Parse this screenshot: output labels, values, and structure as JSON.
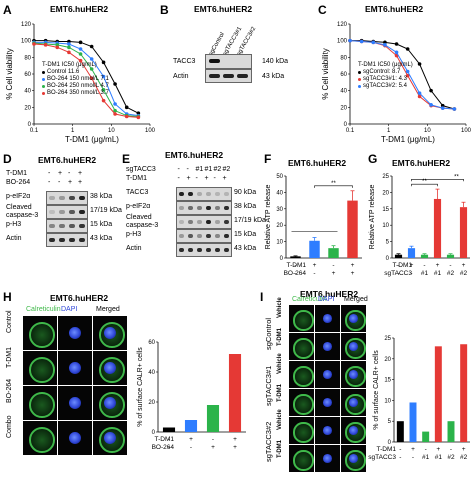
{
  "panels": {
    "A": {
      "letter": "A",
      "title": "EMT6.huHER2",
      "ylabel": "% Cell viability",
      "xlabel": "T-DM1 (μg/mL)",
      "legend_title": "T-DM1 IC50 (μg/mL)",
      "legend": [
        "Control 11.6",
        "BO-264 150 nmol/L 7.1",
        "BO-264 250 nmol/L 4.7",
        "BO-264 350 nmol/L 3.7"
      ],
      "yticks": [
        "0",
        "20",
        "40",
        "60",
        "80",
        "100",
        "120"
      ],
      "xticks": [
        "0.1",
        "1",
        "10",
        "100"
      ]
    },
    "B": {
      "letter": "B",
      "title": "EMT6.huHER2",
      "lanes": [
        "sgControl",
        "sgTACC3#1",
        "sgTACC3#2"
      ],
      "rows": [
        {
          "name": "TACC3",
          "kda": "140 kDa"
        },
        {
          "name": "Actin",
          "kda": "43 kDa"
        }
      ]
    },
    "C": {
      "letter": "C",
      "title": "EMT6.huHER2",
      "ylabel": "% Cell viability",
      "xlabel": "T-DM1 (μg/mL)",
      "legend_title": "T-DM1 IC50 (μg/mL)",
      "legend": [
        "sgControl: 8.7",
        "sgTACC3#1: 4.3",
        "sgTACC3#2: 5.4"
      ],
      "yticks": [
        "0",
        "20",
        "40",
        "60",
        "80",
        "100",
        "120"
      ],
      "xticks": [
        "0.1",
        "1",
        "10",
        "100"
      ]
    },
    "D": {
      "letter": "D",
      "title": "EMT6.huHER2",
      "conds": [
        {
          "name": "T-DM1",
          "vals": [
            "-",
            "+",
            "-",
            "+"
          ]
        },
        {
          "name": "BO-264",
          "vals": [
            "-",
            "-",
            "+",
            "+"
          ]
        }
      ],
      "rows": [
        {
          "name": "p-eIF2α",
          "kda": "38 kDa"
        },
        {
          "name": "Cleaved caspase-3",
          "kda": "17/19 kDa"
        },
        {
          "name": "p-H3",
          "kda": "15 kDa"
        },
        {
          "name": "Actin",
          "kda": "43 kDa"
        }
      ]
    },
    "E": {
      "letter": "E",
      "title": "EMT6.huHER2",
      "conds": [
        {
          "name": "sgTACC3",
          "vals": [
            "-",
            "-",
            "#1",
            "#1",
            "#2",
            "#2"
          ]
        },
        {
          "name": "T-DM1",
          "vals": [
            "-",
            "+",
            "-",
            "+",
            "-",
            "+"
          ]
        }
      ],
      "rows": [
        {
          "name": "TACC3",
          "kda": "90 kDa"
        },
        {
          "name": "p-eIF2α",
          "kda": "38 kDa"
        },
        {
          "name": "Cleaved caspase-3",
          "kda": "17/19 kDa"
        },
        {
          "name": "p-H3",
          "kda": "15 kDa"
        },
        {
          "name": "Actin",
          "kda": "43 kDa"
        }
      ]
    },
    "F": {
      "letter": "F",
      "title": "EMT6.huHER2",
      "ylabel": "Relative ATP release",
      "yticks": [
        "0",
        "10",
        "20",
        "30",
        "40",
        "50"
      ],
      "signif": "**",
      "conds": [
        {
          "name": "T-DM1",
          "vals": [
            "-",
            "+",
            "-",
            "+"
          ]
        },
        {
          "name": "BO-264",
          "vals": [
            "-",
            "-",
            "+",
            "+"
          ]
        }
      ]
    },
    "G": {
      "letter": "G",
      "title": "EMT6.huHER2",
      "ylabel": "Relative ATP release",
      "yticks": [
        "0",
        "5",
        "10",
        "15",
        "20",
        "25"
      ],
      "signif": [
        "**",
        "**"
      ],
      "conds": [
        {
          "name": "T-DM1",
          "vals": [
            "-",
            "+",
            "-",
            "+",
            "-",
            "+"
          ]
        },
        {
          "name": "sgTACC3",
          "vals": [
            "-",
            "-",
            "#1",
            "#1",
            "#2",
            "#2"
          ]
        }
      ]
    },
    "H": {
      "letter": "H",
      "title": "EMT6.huHER2",
      "cols": [
        "Calreticulin",
        "DAPI",
        "Merged"
      ],
      "rows": [
        "Control",
        "T-DM1",
        "BO-264",
        "Combo"
      ],
      "ylabel": "% of surface CALR+ cells",
      "yticks": [
        "0",
        "20",
        "40",
        "60"
      ],
      "conds": [
        {
          "name": "T-DM1",
          "vals": [
            "-",
            "+",
            "-",
            "+"
          ]
        },
        {
          "name": "BO-264",
          "vals": [
            "-",
            "-",
            "+",
            "+"
          ]
        }
      ]
    },
    "I": {
      "letter": "I",
      "title": "EMT6.huHER2",
      "cols": [
        "Calreticulin",
        "DAPI",
        "Merged"
      ],
      "groups": [
        "sgControl",
        "sgTACC3#1",
        "sgTACC3#2"
      ],
      "rows": [
        "Vehicle",
        "T-DM1",
        "Vehicle",
        "T-DM1",
        "Vehicle",
        "T-DM1"
      ],
      "ylabel": "% of surface CALR+ cells",
      "yticks": [
        "0",
        "5",
        "10",
        "15",
        "20",
        "25"
      ],
      "conds": [
        {
          "name": "T-DM1",
          "vals": [
            "-",
            "+",
            "-",
            "+",
            "-",
            "+"
          ]
        },
        {
          "name": "sgTACC3",
          "vals": [
            "-",
            "-",
            "#1",
            "#1",
            "#2",
            "#2"
          ]
        }
      ]
    }
  },
  "chart_data": [
    {
      "type": "line",
      "panel": "A",
      "xscale": "log",
      "xlim": [
        0.1,
        100
      ],
      "ylim": [
        0,
        120
      ],
      "title": "EMT6.huHER2",
      "xlabel": "T-DM1 (μg/mL)",
      "ylabel": "% Cell viability",
      "series": [
        {
          "name": "Control 11.6",
          "color": "#000000",
          "x": [
            0.1,
            0.2,
            0.4,
            0.8,
            1.6,
            3.1,
            6.3,
            12.5,
            25,
            50
          ],
          "y": [
            100,
            100,
            99,
            99,
            98,
            93,
            74,
            48,
            20,
            13
          ]
        },
        {
          "name": "BO-264 150 nmol/L 7.1",
          "color": "#2e7dff",
          "x": [
            0.1,
            0.2,
            0.4,
            0.8,
            1.6,
            3.1,
            6.3,
            12.5,
            25,
            50
          ],
          "y": [
            98,
            98,
            97,
            96,
            90,
            78,
            57,
            24,
            12,
            10
          ]
        },
        {
          "name": "BO-264 250 nmol/L 4.7",
          "color": "#2bb34a",
          "x": [
            0.1,
            0.2,
            0.4,
            0.8,
            1.6,
            3.1,
            6.3,
            12.5,
            25,
            50
          ],
          "y": [
            97,
            96,
            95,
            92,
            84,
            66,
            41,
            16,
            10,
            9
          ]
        },
        {
          "name": "BO-264 350 nmol/L 3.7",
          "color": "#e53935",
          "x": [
            0.1,
            0.2,
            0.4,
            0.8,
            1.6,
            3.1,
            6.3,
            12.5,
            25,
            50
          ],
          "y": [
            96,
            95,
            92,
            86,
            76,
            55,
            28,
            12,
            9,
            8
          ]
        }
      ]
    },
    {
      "type": "line",
      "panel": "C",
      "xscale": "log",
      "xlim": [
        0.1,
        100
      ],
      "ylim": [
        0,
        120
      ],
      "title": "EMT6.huHER2",
      "xlabel": "T-DM1 (μg/mL)",
      "ylabel": "% Cell viability",
      "series": [
        {
          "name": "sgControl: 8.7",
          "color": "#000000",
          "x": [
            0.1,
            0.2,
            0.4,
            0.8,
            1.6,
            3.1,
            6.3,
            12.5,
            25,
            50
          ],
          "y": [
            100,
            100,
            99,
            98,
            96,
            90,
            72,
            40,
            22,
            18
          ]
        },
        {
          "name": "sgTACC3#1: 4.3",
          "color": "#e53935",
          "x": [
            0.1,
            0.2,
            0.4,
            0.8,
            1.6,
            3.1,
            6.3,
            12.5,
            25,
            50
          ],
          "y": [
            100,
            99,
            98,
            94,
            82,
            58,
            33,
            22,
            19,
            18
          ]
        },
        {
          "name": "sgTACC3#2: 5.4",
          "color": "#2e7dff",
          "x": [
            0.1,
            0.2,
            0.4,
            0.8,
            1.6,
            3.1,
            6.3,
            12.5,
            25,
            50
          ],
          "y": [
            100,
            99,
            98,
            95,
            86,
            63,
            37,
            23,
            19,
            18
          ]
        }
      ]
    },
    {
      "type": "bar",
      "panel": "F",
      "ylim": [
        0,
        50
      ],
      "ylabel": "Relative ATP release",
      "categories": [
        "T-DM1 -/BO-264 -",
        "T-DM1 +/BO-264 -",
        "T-DM1 -/BO-264 +",
        "T-DM1 +/BO-264 +"
      ],
      "values": [
        1.0,
        10.5,
        6.0,
        35.0
      ],
      "errors": [
        0.3,
        2.0,
        1.5,
        6.0
      ],
      "colors": [
        "#000000",
        "#2e7dff",
        "#2bb34a",
        "#e53935"
      ]
    },
    {
      "type": "bar",
      "panel": "G",
      "ylim": [
        0,
        25
      ],
      "ylabel": "Relative ATP release",
      "categories": [
        "-/-",
        "+/-",
        "-/#1",
        "+/#1",
        "-/#2",
        "+/#2"
      ],
      "values": [
        1.0,
        3.0,
        1.0,
        18.0,
        1.0,
        15.5
      ],
      "errors": [
        0.3,
        0.6,
        0.3,
        3.0,
        0.3,
        1.5
      ],
      "colors": [
        "#000000",
        "#2e7dff",
        "#2bb34a",
        "#e53935",
        "#2bb34a",
        "#e53935"
      ]
    },
    {
      "type": "bar",
      "panel": "H",
      "ylim": [
        0,
        60
      ],
      "ylabel": "% of surface CALR+ cells",
      "categories": [
        "Control",
        "T-DM1",
        "BO-264",
        "Combo"
      ],
      "values": [
        3,
        8,
        18,
        52
      ],
      "colors": [
        "#000000",
        "#2e7dff",
        "#2bb34a",
        "#e53935"
      ]
    },
    {
      "type": "bar",
      "panel": "I",
      "ylim": [
        0,
        25
      ],
      "ylabel": "% of surface CALR+ cells",
      "categories": [
        "-/-",
        "+/-",
        "-/#1",
        "+/#1",
        "-/#2",
        "+/#2"
      ],
      "values": [
        5.0,
        9.5,
        2.5,
        23.0,
        5.0,
        23.5
      ],
      "colors": [
        "#000000",
        "#2e7dff",
        "#2bb34a",
        "#e53935",
        "#2bb34a",
        "#e53935"
      ]
    }
  ]
}
